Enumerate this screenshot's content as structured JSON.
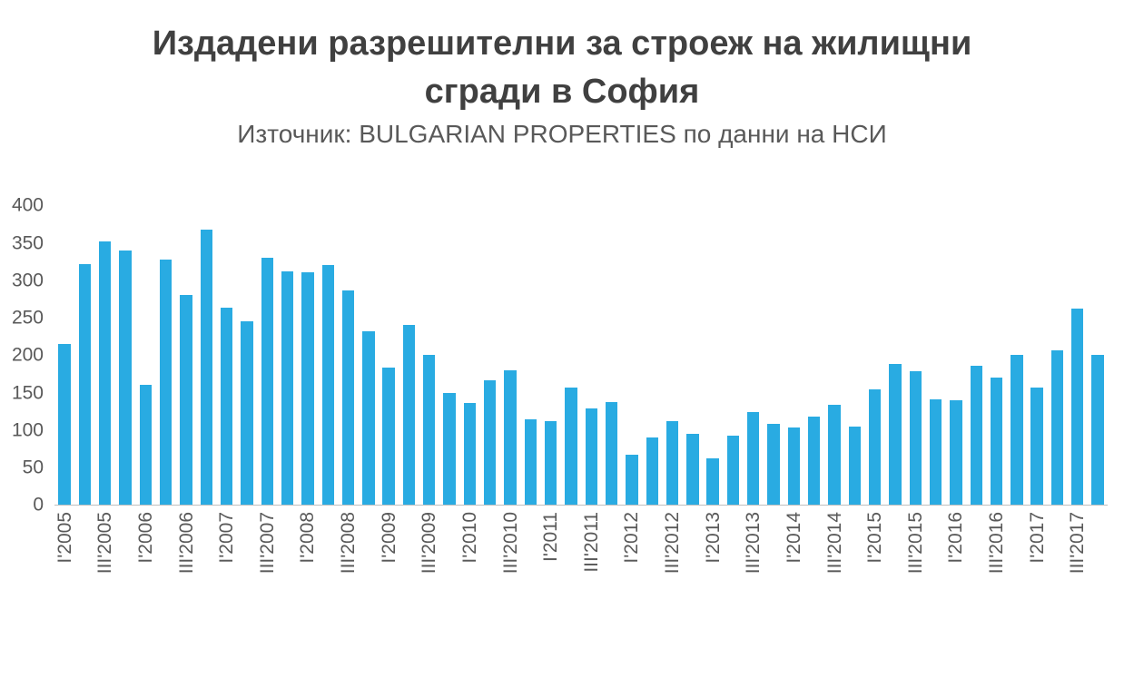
{
  "title": "Издадени разрешителни за строеж на жилищни сгради в София",
  "subtitle": "Източник: BULGARIAN PROPERTIES по данни на НСИ",
  "chart_data": {
    "type": "bar",
    "title": "Издадени разрешителни за строеж на жилищни сгради в София",
    "subtitle": "Източник: BULGARIAN PROPERTIES по данни на НСИ",
    "bar_color": "#29ABE2",
    "grid": false,
    "legend": false,
    "ylim": [
      0,
      400
    ],
    "y_ticks": [
      0,
      50,
      100,
      150,
      200,
      250,
      300,
      350,
      400
    ],
    "label_every": 2,
    "categories": [
      "I'2005",
      "II'2005",
      "III'2005",
      "IV'2005",
      "I'2006",
      "II'2006",
      "III'2006",
      "IV'2006",
      "I'2007",
      "II'2007",
      "III'2007",
      "IV'2007",
      "I'2008",
      "II'2008",
      "III'2008",
      "IV'2008",
      "I'2009",
      "II'2009",
      "III'2009",
      "IV'2009",
      "I'2010",
      "II'2010",
      "III'2010",
      "IV'2010",
      "I'2011",
      "II'2011",
      "III'2011",
      "IV'2011",
      "I'2012",
      "II'2012",
      "III'2012",
      "IV'2012",
      "I'2013",
      "II'2013",
      "III'2013",
      "IV'2013",
      "I'2014",
      "II'2014",
      "III'2014",
      "IV'2014",
      "I'2015",
      "II'2015",
      "III'2015",
      "IV'2015",
      "I'2016",
      "II'2016",
      "III'2016",
      "IV'2016",
      "I'2017",
      "II'2017",
      "III'2017",
      "IV'2017"
    ],
    "values": [
      215,
      322,
      352,
      340,
      160,
      328,
      280,
      368,
      263,
      245,
      330,
      312,
      311,
      321,
      287,
      232,
      183,
      241,
      201,
      150,
      136,
      167,
      180,
      115,
      112,
      157,
      129,
      138,
      67,
      90,
      112,
      95,
      62,
      93,
      124,
      108,
      103,
      118,
      134,
      105,
      154,
      188,
      179,
      141,
      140,
      186,
      170,
      201,
      157,
      207,
      262,
      201
    ]
  }
}
